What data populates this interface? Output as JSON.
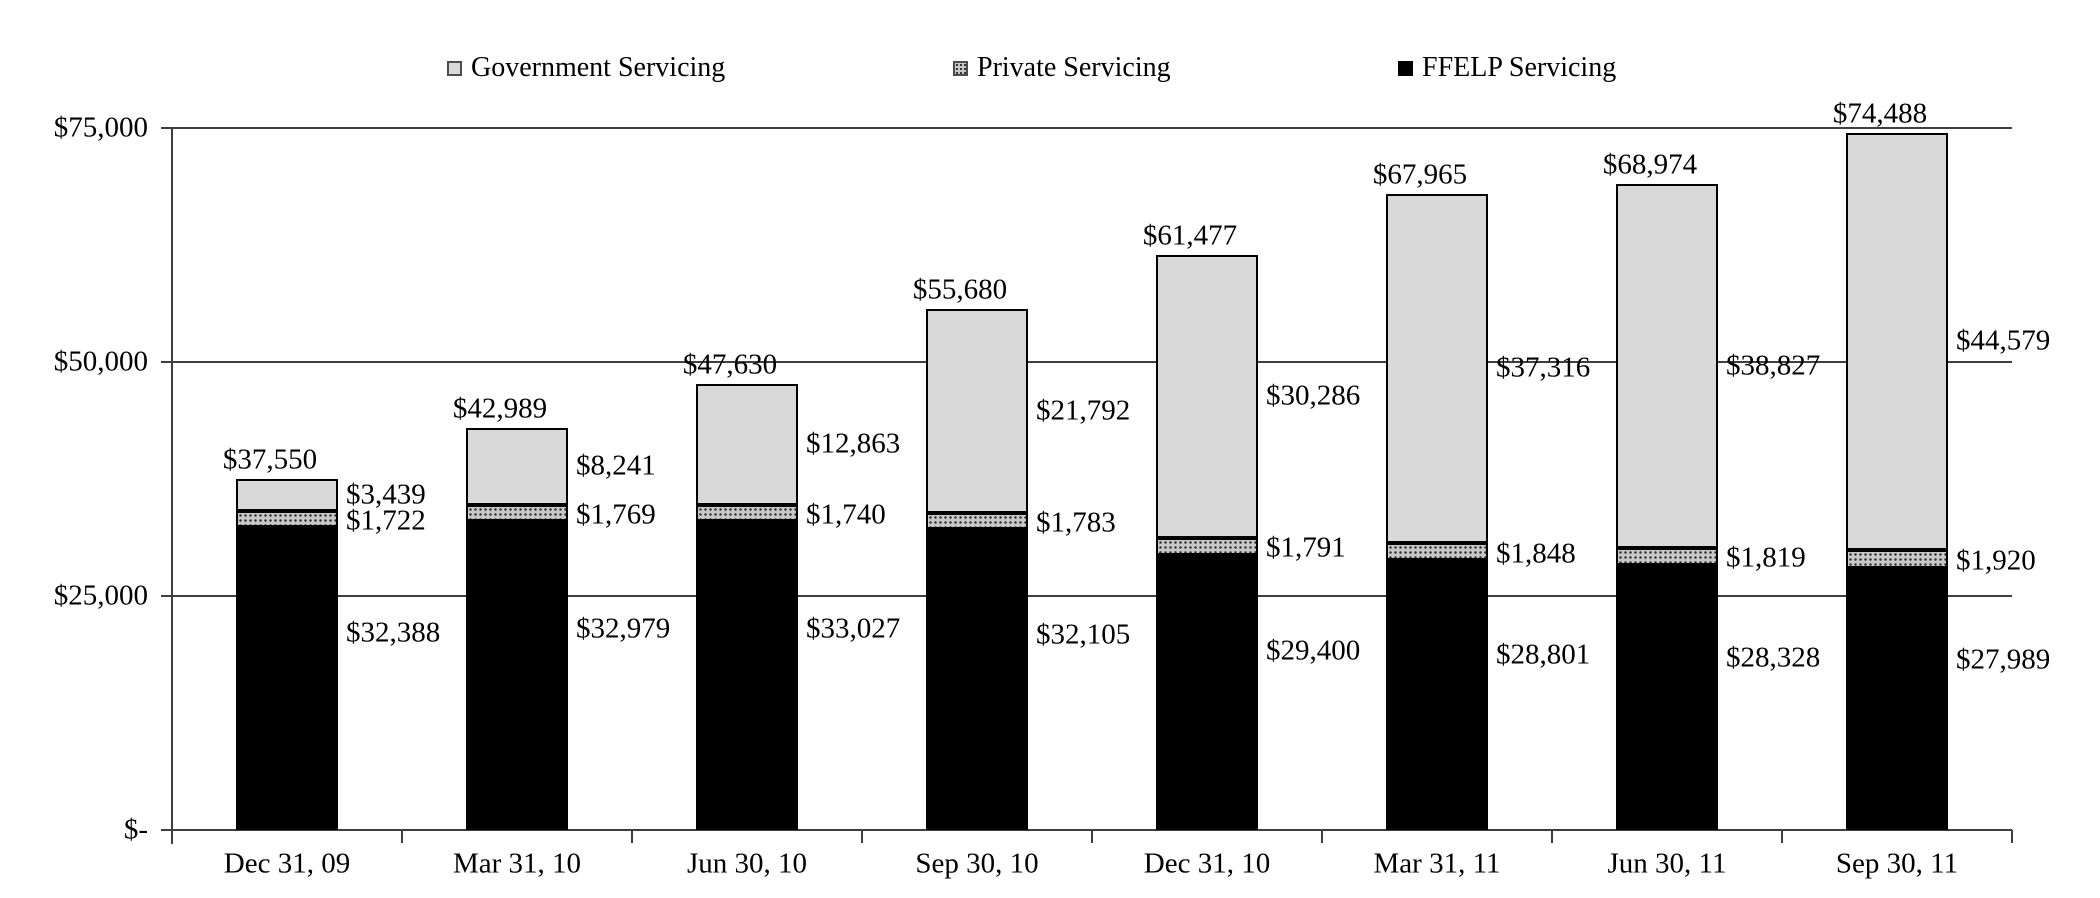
{
  "chart_data": {
    "type": "bar",
    "stacked": true,
    "title": "",
    "categories": [
      "Dec 31, 09",
      "Mar 31, 10",
      "Jun 30, 10",
      "Sep 30, 10",
      "Dec 31, 10",
      "Mar 31, 11",
      "Jun 30, 11",
      "Sep 30, 11"
    ],
    "legend": [
      {
        "label": "Government Servicing",
        "swatch": "light-gray-square"
      },
      {
        "label": "Private Servicing",
        "swatch": "dotted-gray-square"
      },
      {
        "label": "FFELP Servicing",
        "swatch": "black-square"
      }
    ],
    "legend_position": "top",
    "grid": true,
    "series": [
      {
        "name": "FFELP Servicing",
        "color": "#000000",
        "pattern": "solid",
        "values": [
          32388,
          32979,
          33027,
          32105,
          29400,
          28801,
          28328,
          27989
        ],
        "labels": [
          "$32,388",
          "$32,979",
          "$33,027",
          "$32,105",
          "$29,400",
          "$28,801",
          "$28,328",
          "$27,989"
        ]
      },
      {
        "name": "Private Servicing",
        "color": "#c8c8c8",
        "pattern": "dots",
        "values": [
          1722,
          1769,
          1740,
          1783,
          1791,
          1848,
          1819,
          1920
        ],
        "labels": [
          "$1,722",
          "$1,769",
          "$1,740",
          "$1,783",
          "$1,791",
          "$1,848",
          "$1,819",
          "$1,920"
        ]
      },
      {
        "name": "Government Servicing",
        "color": "#d9d9d9",
        "pattern": "solid",
        "values": [
          3439,
          8241,
          12863,
          21792,
          30286,
          37316,
          38827,
          44579
        ],
        "labels": [
          "$3,439",
          "$8,241",
          "$12,863",
          "$21,792",
          "$30,286",
          "$37,316",
          "$38,827",
          "$44,579"
        ]
      }
    ],
    "totals": {
      "values": [
        37550,
        42989,
        47630,
        55680,
        61477,
        67965,
        68974,
        74488
      ],
      "labels": [
        "$37,550",
        "$42,989",
        "$47,630",
        "$55,680",
        "$61,477",
        "$67,965",
        "$68,974",
        "$74,488"
      ]
    },
    "y_axis": {
      "ticks": [
        "$-",
        "$25,000",
        "$50,000",
        "$75,000"
      ],
      "tick_values": [
        0,
        25000,
        50000,
        75000
      ],
      "ylim": [
        0,
        75000
      ]
    },
    "colors": {
      "grid": "#3f3f3f",
      "bar_border": "#000000",
      "text": "#000000",
      "background": "#ffffff"
    }
  }
}
